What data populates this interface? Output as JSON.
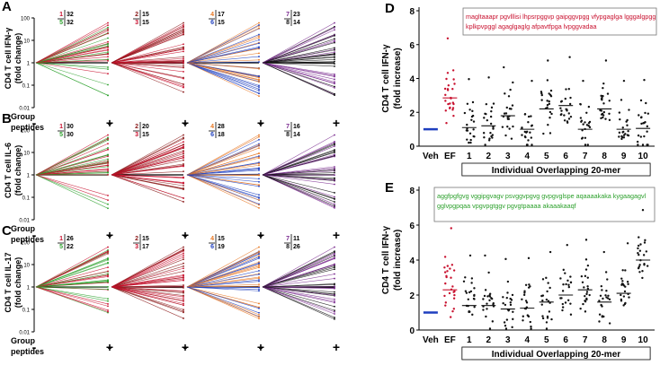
{
  "colors": {
    "red": "#c8102e",
    "green": "#2ca02c",
    "darkred": "#8b1a1a",
    "blue": "#1f3fbf",
    "orange": "#e87722",
    "black": "#111111",
    "purple": "#7a2b8f",
    "vehblue": "#1f3fbf"
  },
  "left": {
    "ylabel_group": "Group",
    "xlabel_group": "peptides",
    "minus": "-",
    "plus": "+",
    "ticks": [
      "100",
      "10",
      "1",
      "0.1",
      "0.01"
    ],
    "rows": [
      {
        "panel": "A",
        "ylabel": "CD4 T cell IFN-γ",
        "ylabel2": "(fold change)",
        "groups": [
          {
            "top": "1",
            "topval": "32",
            "bot": "5",
            "botval": "32",
            "c1": "red",
            "c2": "green",
            "up": 0.7
          },
          {
            "top": "2",
            "topval": "15",
            "bot": "3",
            "botval": "15",
            "c1": "darkred",
            "c2": "red",
            "up": 0.55
          },
          {
            "top": "4",
            "topval": "17",
            "bot": "6",
            "botval": "15",
            "c1": "orange",
            "c2": "blue",
            "up": 0.5
          },
          {
            "top": "7",
            "topval": "23",
            "bot": "8",
            "botval": "14",
            "c1": "purple",
            "c2": "black",
            "up": 0.55
          }
        ]
      },
      {
        "panel": "B",
        "ylabel": "CD4 T cell IL-6",
        "ylabel2": "(fold change)",
        "groups": [
          {
            "top": "1",
            "topval": "30",
            "bot": "5",
            "botval": "30",
            "c1": "red",
            "c2": "green",
            "up": 0.75
          },
          {
            "top": "2",
            "topval": "20",
            "bot": "3",
            "botval": "15",
            "c1": "darkred",
            "c2": "red",
            "up": 0.6
          },
          {
            "top": "4",
            "topval": "28",
            "bot": "6",
            "botval": "18",
            "c1": "orange",
            "c2": "blue",
            "up": 0.65
          },
          {
            "top": "7",
            "topval": "16",
            "bot": "8",
            "botval": "14",
            "c1": "purple",
            "c2": "black",
            "up": 0.6
          }
        ]
      },
      {
        "panel": "C",
        "ylabel": "CD4 T cell IL-17",
        "ylabel2": "(fold change)",
        "groups": [
          {
            "top": "1",
            "topval": "26",
            "bot": "5",
            "botval": "22",
            "c1": "red",
            "c2": "green",
            "up": 0.7
          },
          {
            "top": "2",
            "topval": "15",
            "bot": "3",
            "botval": "17",
            "c1": "darkred",
            "c2": "red",
            "up": 0.6
          },
          {
            "top": "4",
            "topval": "15",
            "bot": "6",
            "botval": "19",
            "c1": "orange",
            "c2": "blue",
            "up": 0.6
          },
          {
            "top": "7",
            "topval": "11",
            "bot": "8",
            "botval": "26",
            "c1": "purple",
            "c2": "black",
            "up": 0.65
          }
        ]
      }
    ]
  },
  "chart_data": [
    {
      "panel": "D",
      "type": "scatter",
      "ylabel": "CD4 T cell IFN-γ",
      "ylabel2": "(fold increase)",
      "xlabel": "Individual Overlapping 20-mer",
      "categories": [
        "Veh",
        "EF",
        "1",
        "2",
        "3",
        "4",
        "5",
        "6",
        "7",
        "8",
        "9",
        "10"
      ],
      "ylim": [
        0,
        8
      ],
      "yticks": [
        "0",
        "2",
        "4",
        "6",
        "8"
      ],
      "medians": [
        1.0,
        2.85,
        1.1,
        1.2,
        1.8,
        1.0,
        2.2,
        2.4,
        1.0,
        2.2,
        1.0,
        1.05
      ],
      "sequence_lines": [
        "magltaaapr pgvlllisi lhpsrpggvp gaipggvpgg vfypgaglga lgggalgpgg",
        "kplkpvpggl agaglgaglg afpavtfpga lvpggvadaa"
      ]
    },
    {
      "panel": "E",
      "type": "scatter",
      "ylabel": "CD4 T cell IFN-γ",
      "ylabel2": "(fold increase)",
      "xlabel": "Individual Overlapping 20-mer",
      "categories": [
        "Veh",
        "EF",
        "1",
        "2",
        "3",
        "4",
        "5",
        "6",
        "7",
        "8",
        "9",
        "10"
      ],
      "ylim": [
        0,
        8
      ],
      "yticks": [
        "0",
        "2",
        "4",
        "6",
        "8"
      ],
      "medians": [
        1.0,
        2.3,
        1.4,
        1.4,
        1.2,
        1.25,
        1.6,
        2.0,
        2.3,
        1.6,
        2.1,
        4.0
      ],
      "sequence_lines": [
        "aggfpgfgvg vggipgvagv psvggvpgvg gvpgvglspe aqaaaakaka kygaagagvl",
        "gglvpgpqaa vpgvpgtggv pgvgtpaaaa akaaakaaqf"
      ]
    }
  ]
}
